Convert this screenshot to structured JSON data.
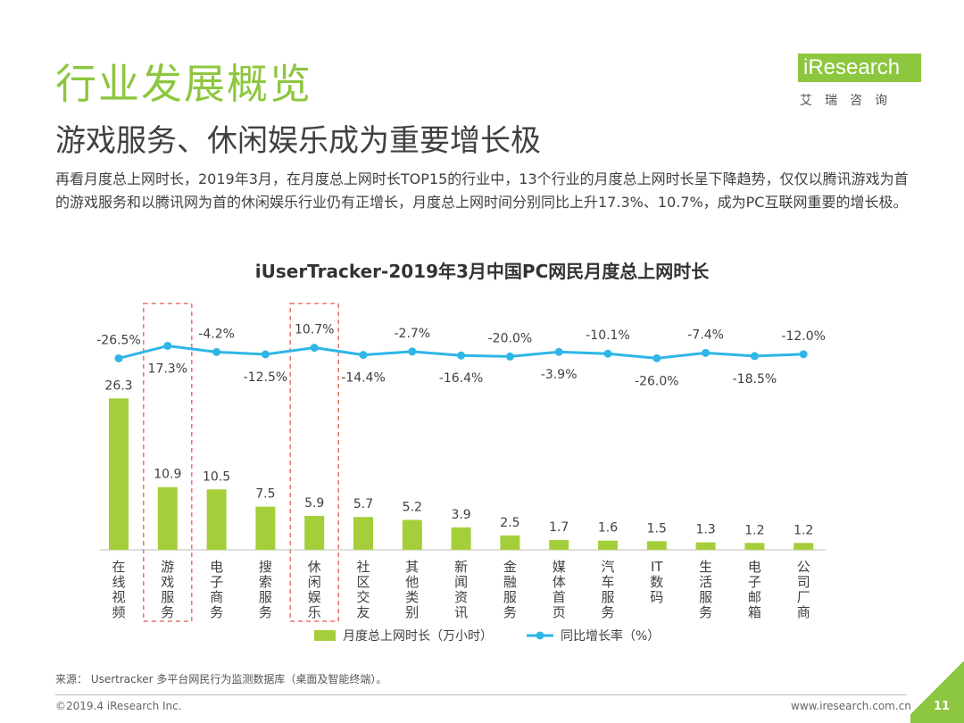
{
  "slide": {
    "title": "行业发展概览",
    "subtitle": "游戏服务、休闲娱乐成为重要增长极",
    "intro": "再看月度总上网时长，2019年3月，在月度总上网时长TOP15的行业中，13个行业的月度总上网时长呈下降趋势，仅仅以腾讯游戏为首的游戏服务和以腾讯网为首的休闲娱乐行业仍有正增长，月度总上网时间分别同比上升17.3%、10.7%，成为PC互联网重要的增长极。",
    "source": "来源：  Usertracker 多平台网民行为监测数据库（桌面及智能终端）。",
    "copyright": "©2019.4 iResearch Inc.",
    "website": "www.iresearch.com.cn",
    "page_number": "11"
  },
  "logo": {
    "brand": "iResearch",
    "chinese": "艾瑞咨询"
  },
  "colors": {
    "accent": "#8dc63f",
    "bar": "#a5cf3a",
    "line": "#2eb6e6",
    "highlight_box": "#e8736b"
  },
  "chart_data": {
    "type": "bar",
    "title": "iUserTracker-2019年3月中国PC网民月度总上网时长",
    "categories": [
      "在线视频",
      "游戏服务",
      "电子商务",
      "搜索服务",
      "休闲娱乐",
      "社区交友",
      "其他类别",
      "新闻资讯",
      "金融服务",
      "媒体首页",
      "汽车服务",
      "IT数码",
      "生活服务",
      "电子邮箱",
      "公司厂商"
    ],
    "series": [
      {
        "name": "月度总上网时长（万小时）",
        "type": "bar",
        "values": [
          26.3,
          10.9,
          10.5,
          7.5,
          5.9,
          5.7,
          5.2,
          3.9,
          2.5,
          1.7,
          1.6,
          1.5,
          1.3,
          1.2,
          1.2
        ],
        "labels": [
          "26.3",
          "10.9",
          "10.5",
          "7.5",
          "5.9",
          "5.7",
          "5.2",
          "3.9",
          "2.5",
          "1.7",
          "1.6",
          "1.5",
          "1.3",
          "1.2",
          "1.2"
        ]
      },
      {
        "name": "同比增长率（%）",
        "type": "line",
        "values": [
          -26.5,
          17.3,
          -4.2,
          -12.5,
          10.7,
          -14.4,
          -2.7,
          -16.4,
          -20.0,
          -3.9,
          -10.1,
          -26.0,
          -7.4,
          -18.5,
          -12.0
        ],
        "labels": [
          "-26.5%",
          "17.3%",
          "-4.2%",
          "-12.5%",
          "10.7%",
          "-14.4%",
          "-2.7%",
          "-16.4%",
          "-20.0%",
          "-3.9%",
          "-10.1%",
          "-26.0%",
          "-7.4%",
          "-18.5%",
          "-12.0%"
        ]
      }
    ],
    "ylim": [
      0,
      30
    ],
    "y2lim": [
      -30,
      20
    ],
    "legend": "bottom",
    "highlighted_categories": [
      "游戏服务",
      "休闲娱乐"
    ]
  }
}
